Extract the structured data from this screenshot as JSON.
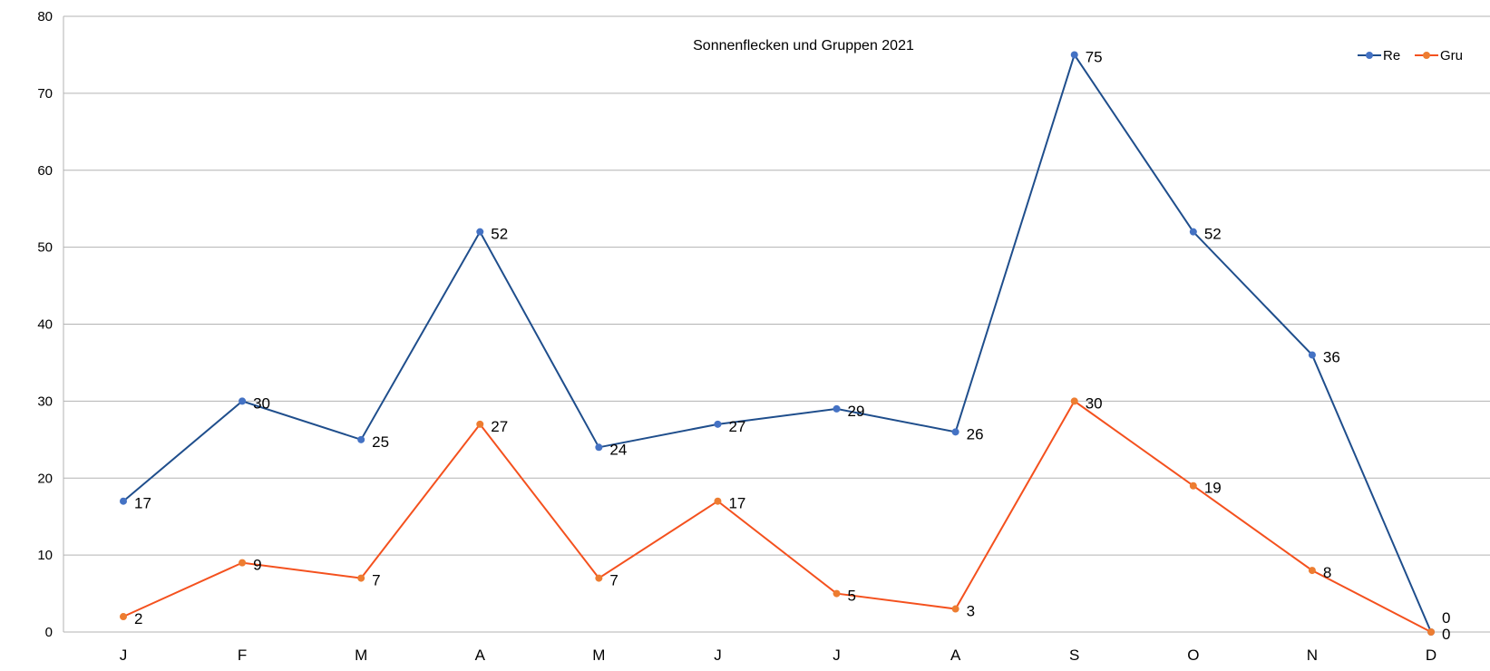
{
  "chart_data": {
    "type": "line",
    "title": "Sonnenflecken und Gruppen 2021",
    "xlabel": "",
    "ylabel": "",
    "categories": [
      "J",
      "F",
      "M",
      "A",
      "M",
      "J",
      "J",
      "A",
      "S",
      "O",
      "N",
      "D"
    ],
    "ylim": [
      0,
      80
    ],
    "yticks": [
      0,
      10,
      20,
      30,
      40,
      50,
      60,
      70,
      80
    ],
    "grid": true,
    "legend_position": "top-right",
    "series": [
      {
        "name": "Re",
        "color": "#1f4e8c",
        "marker_color": "#4472c4",
        "values": [
          17,
          30,
          25,
          52,
          24,
          27,
          29,
          26,
          75,
          52,
          36,
          0
        ]
      },
      {
        "name": "Gru",
        "color": "#f4511e",
        "marker_color": "#ed7d31",
        "values": [
          2,
          9,
          7,
          27,
          7,
          17,
          5,
          3,
          30,
          19,
          8,
          0
        ]
      }
    ]
  }
}
